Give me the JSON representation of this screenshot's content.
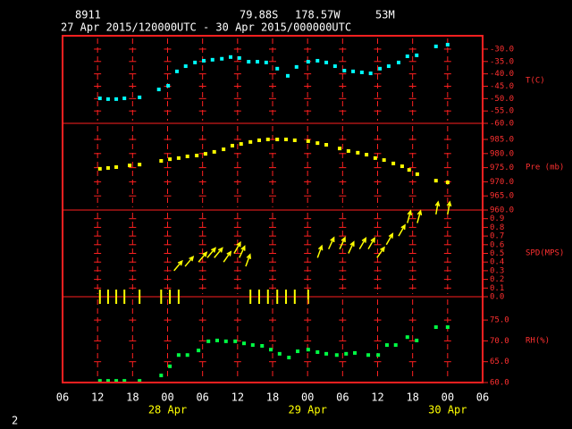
{
  "header": {
    "station": "8911",
    "lat": "79.88S",
    "lon": "178.57W",
    "elev": "53M",
    "period": "27 Apr 2015/120000UTC - 30 Apr 2015/000000UTC",
    "page": "2"
  },
  "x_axis": {
    "xlim": [
      6,
      78
    ],
    "xticks": [
      {
        "value": 6,
        "label": "06"
      },
      12,
      18,
      {
        "value": 24,
        "label": "00"
      },
      {
        "value": 30,
        "label": "06"
      },
      {
        "value": 36,
        "label": "12"
      },
      {
        "value": 42,
        "label": "18"
      },
      {
        "value": 48,
        "label": "00"
      },
      {
        "value": 54,
        "label": "06"
      },
      {
        "value": 60,
        "label": "12"
      },
      {
        "value": 66,
        "label": "18"
      },
      {
        "value": 72,
        "label": "00"
      },
      {
        "value": 78,
        "label": "06"
      }
    ],
    "date_labels": [
      {
        "value": 24,
        "label": "28 Apr"
      },
      {
        "value": 48,
        "label": "29 Apr"
      },
      {
        "value": 72,
        "label": "30 Apr"
      }
    ]
  },
  "chart_data": [
    {
      "type": "scatter",
      "label": "T(C)",
      "color": "#00ffff",
      "ylim": [
        -60,
        -24.6
      ],
      "yticks": [
        {
          "value": -30,
          "label": "-30.0"
        },
        {
          "value": -35,
          "label": "-35.0"
        },
        {
          "value": -40,
          "label": "-40.0"
        },
        {
          "value": -45,
          "label": "-45.0"
        },
        {
          "value": -50,
          "label": "-50.0"
        },
        {
          "value": -55,
          "label": "-55.0"
        },
        {
          "value": -60,
          "label": "-60.0"
        }
      ],
      "x": [
        12.4,
        13.8,
        15.2,
        16.6,
        19.2,
        22.5,
        24.1,
        25.6,
        27.1,
        28.7,
        30.2,
        31.7,
        33.3,
        34.8,
        36.3,
        37.9,
        39.4,
        40.9,
        42.8,
        44.6,
        46.1,
        48.1,
        49.7,
        51.2,
        52.7,
        54.3,
        55.8,
        57.3,
        58.8,
        60.4,
        61.9,
        63.6,
        65.1,
        66.7,
        70.0,
        72.0
      ],
      "values": [
        -49.9,
        -50.2,
        -50.2,
        -49.9,
        -49.5,
        -46.3,
        -44.8,
        -39.0,
        -36.9,
        -35.4,
        -34.7,
        -34.3,
        -33.9,
        -33.2,
        -33.6,
        -35.1,
        -35.1,
        -35.4,
        -37.9,
        -40.8,
        -37.2,
        -35.1,
        -34.7,
        -35.4,
        -36.9,
        -38.7,
        -39.0,
        -39.4,
        -39.8,
        -37.9,
        -36.9,
        -35.4,
        -32.9,
        -32.5,
        -28.9,
        -28.2
      ]
    },
    {
      "type": "scatter",
      "label": "Pre (mb)",
      "color": "#ffff00",
      "ylim": [
        960,
        990.7
      ],
      "yticks": [
        {
          "value": 985,
          "label": "985.0"
        },
        {
          "value": 980,
          "label": "980.0"
        },
        {
          "value": 975,
          "label": "975.0"
        },
        {
          "value": 970,
          "label": "970.0"
        },
        {
          "value": 965,
          "label": "965.0"
        },
        {
          "value": 960,
          "label": "960.0"
        }
      ],
      "x": [
        12.4,
        13.8,
        15.2,
        17.5,
        19.2,
        22.9,
        24.4,
        25.9,
        27.4,
        29.0,
        30.5,
        32.0,
        33.6,
        35.1,
        36.6,
        38.2,
        39.7,
        41.2,
        42.8,
        44.3,
        45.8,
        48.1,
        49.7,
        51.2,
        53.5,
        55.0,
        56.6,
        58.1,
        59.6,
        61.1,
        62.7,
        64.2,
        65.4,
        66.8,
        70.0,
        72.0
      ],
      "values": [
        974.6,
        974.9,
        975.2,
        975.8,
        976.1,
        977.4,
        978.0,
        978.4,
        979.0,
        979.3,
        979.9,
        980.6,
        981.5,
        982.8,
        983.4,
        984.1,
        984.7,
        985.0,
        985.0,
        985.0,
        984.7,
        984.4,
        983.7,
        983.1,
        981.8,
        980.9,
        980.3,
        979.6,
        978.4,
        977.7,
        976.5,
        975.5,
        974.2,
        972.7,
        970.4,
        969.8
      ]
    },
    {
      "type": "wind",
      "label": "SPD(MPS)",
      "color": "#ffff00",
      "ylim": [
        0,
        1.0
      ],
      "yticks": [
        {
          "value": 0.9,
          "label": "0.9"
        },
        {
          "value": 0.8,
          "label": "0.8"
        },
        {
          "value": 0.7,
          "label": "0.7"
        },
        {
          "value": 0.6,
          "label": "0.6"
        },
        {
          "value": 0.5,
          "label": "0.5"
        },
        {
          "value": 0.4,
          "label": "0.4"
        },
        {
          "value": 0.3,
          "label": "0.3"
        },
        {
          "value": 0.2,
          "label": "0.2"
        },
        {
          "value": 0.1,
          "label": "0.1"
        },
        {
          "value": 0,
          "label": "0.0"
        }
      ],
      "x": [
        12.4,
        13.8,
        15.2,
        16.6,
        19.2,
        22.9,
        24.4,
        25.1,
        25.9,
        27.0,
        29.3,
        30.8,
        32.0,
        33.6,
        35.4,
        36.3,
        37.4,
        38.2,
        39.7,
        41.2,
        42.8,
        44.3,
        45.8,
        48.1,
        49.7,
        51.6,
        53.5,
        55.0,
        56.9,
        58.4,
        59.9,
        61.5,
        63.6,
        65.1,
        66.8,
        70.0,
        72.0
      ],
      "values": [
        0,
        0,
        0,
        0,
        0,
        0,
        0,
        0.3,
        0,
        0.35,
        0.4,
        0.45,
        0.45,
        0.4,
        0.5,
        0.45,
        0.35,
        0,
        0,
        0,
        0,
        0,
        0,
        0,
        0.45,
        0.55,
        0.55,
        0.5,
        0.55,
        0.55,
        0.45,
        0.6,
        0.7,
        0.85,
        0.85,
        0.95,
        0.95
      ],
      "directions": [
        0,
        0,
        0,
        0,
        0,
        0,
        0,
        40,
        0,
        40,
        40,
        40,
        40,
        35,
        30,
        25,
        20,
        0,
        0,
        0,
        0,
        0,
        0,
        0,
        20,
        25,
        25,
        25,
        30,
        30,
        35,
        30,
        30,
        15,
        15,
        10,
        10
      ]
    },
    {
      "type": "scatter",
      "label": "RH(%)",
      "color": "#00ff44",
      "ylim": [
        60,
        80.6
      ],
      "yticks": [
        {
          "value": 75,
          "label": "75.0"
        },
        {
          "value": 70,
          "label": "70.0"
        },
        {
          "value": 65,
          "label": "65.0"
        },
        {
          "value": 60,
          "label": "60.0"
        }
      ],
      "x": [
        12.4,
        13.8,
        15.2,
        16.6,
        19.2,
        22.9,
        24.4,
        25.9,
        27.4,
        29.3,
        31.0,
        32.5,
        34.0,
        35.6,
        37.1,
        38.6,
        40.2,
        41.7,
        43.2,
        44.8,
        46.3,
        48.1,
        49.7,
        51.2,
        53.0,
        54.6,
        56.1,
        58.4,
        60.1,
        61.6,
        63.1,
        65.1,
        66.7,
        70.0,
        72.0
      ],
      "values": [
        60.4,
        60.4,
        60.4,
        60.4,
        60.4,
        61.7,
        63.9,
        66.6,
        66.6,
        67.7,
        69.9,
        70.1,
        69.9,
        69.9,
        69.4,
        69.0,
        68.8,
        67.9,
        66.9,
        66.0,
        67.5,
        67.9,
        67.3,
        66.9,
        66.6,
        66.9,
        67.1,
        66.6,
        66.6,
        69.0,
        69.0,
        70.9,
        70.1,
        73.3,
        73.3
      ]
    }
  ]
}
